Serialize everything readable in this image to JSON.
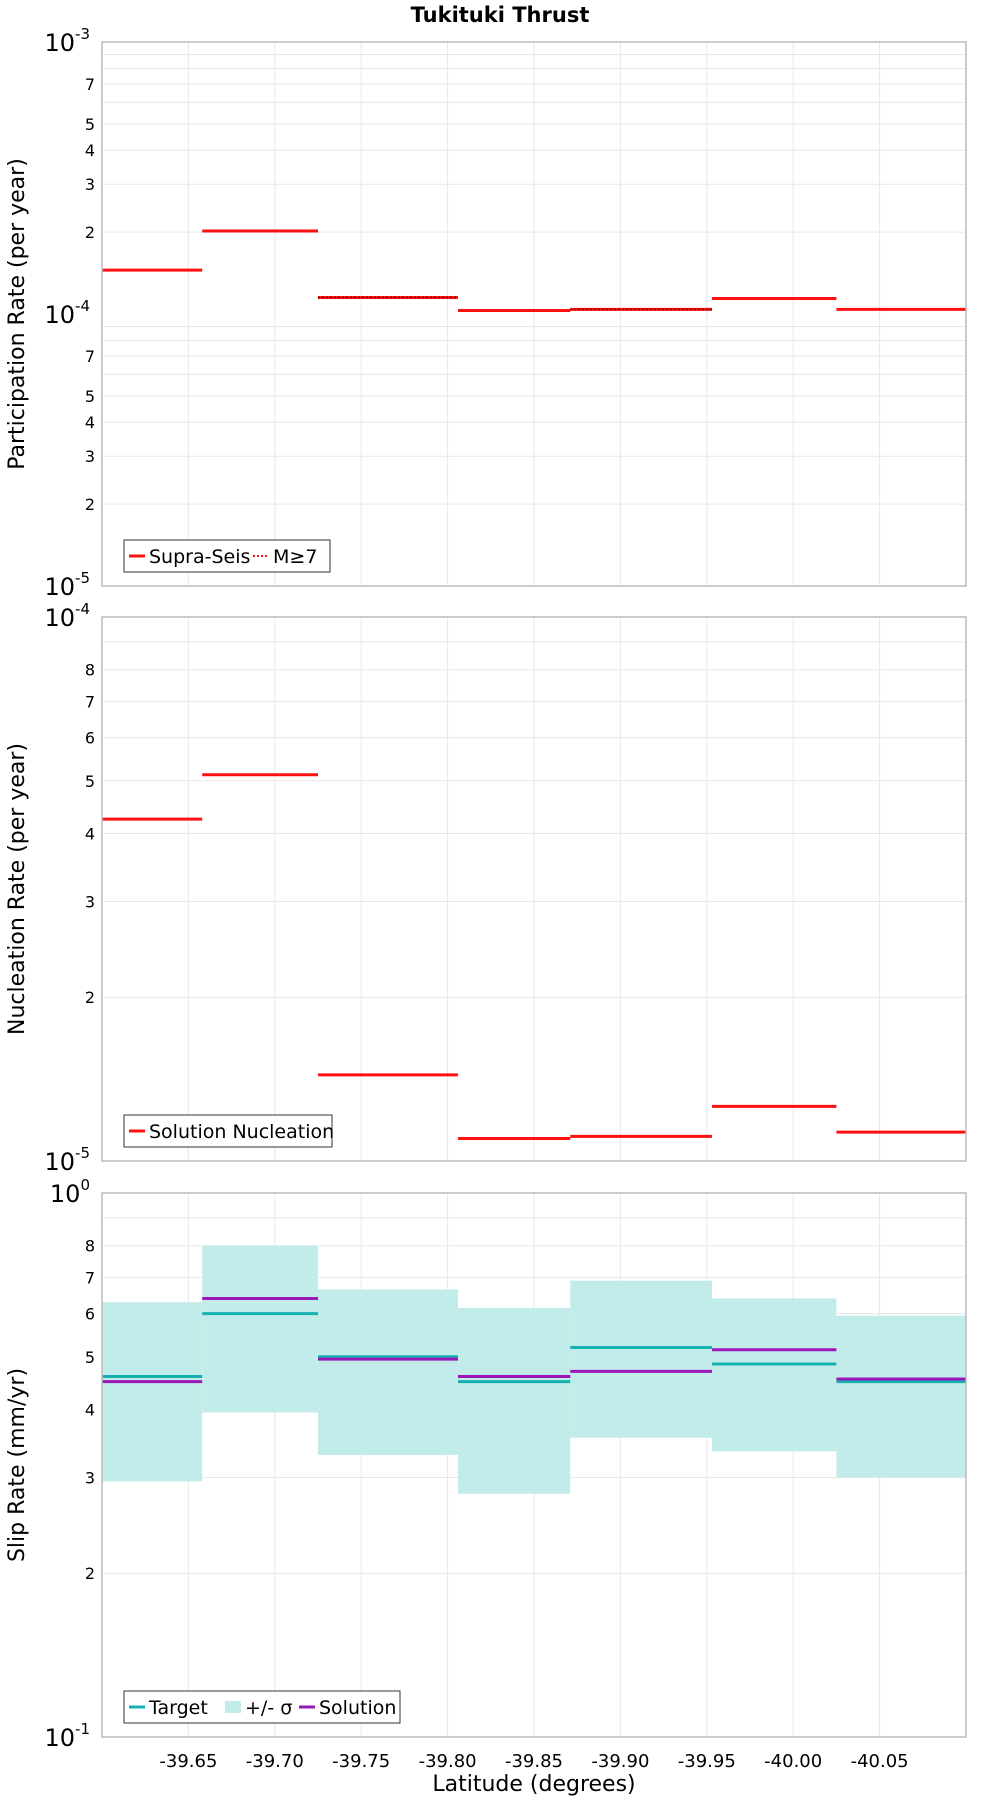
{
  "title": "Tukituki Thrust",
  "xlabel": "Latitude (degrees)",
  "xticks": [
    "-39.65",
    "-39.70",
    "-39.75",
    "-39.80",
    "-39.85",
    "-39.90",
    "-39.95",
    "-40.00",
    "-40.05"
  ],
  "colors": {
    "red": "#ff1010",
    "teal": "#16b0b0",
    "band": "#c2ecea",
    "purple": "#9a18b8",
    "grid": "#e7e7e7",
    "frame": "#bbbbbb"
  },
  "chart_data": [
    {
      "type": "line",
      "panel": "participation",
      "ylabel": "Participation Rate (per year)",
      "yscale": "log",
      "ylim": [
        1e-05,
        0.001
      ],
      "decade_labels": [
        {
          "base": "10",
          "exp": "-3"
        },
        {
          "base": "10",
          "exp": "-4"
        },
        {
          "base": "10",
          "exp": "-5"
        }
      ],
      "legend": {
        "position": "bottom-left",
        "entries": [
          "Supra-Seis",
          "M≥7"
        ]
      },
      "bins": [
        [
          -39.6,
          -39.658
        ],
        [
          -39.658,
          -39.725
        ],
        [
          -39.725,
          -39.806
        ],
        [
          -39.806,
          -39.871
        ],
        [
          -39.871,
          -39.953
        ],
        [
          -39.953,
          -40.025
        ],
        [
          -40.025,
          -40.1
        ]
      ],
      "series": [
        {
          "name": "Supra-Seis",
          "style": "solid",
          "values": [
            0.000145,
            0.000202,
            0.000115,
            0.000103,
            0.000104,
            0.000114,
            0.000104
          ]
        },
        {
          "name": "M≥7",
          "style": "dotted",
          "values": [
            null,
            null,
            0.000115,
            null,
            0.000104,
            null,
            null
          ]
        }
      ]
    },
    {
      "type": "line",
      "panel": "nucleation",
      "ylabel": "Nucleation Rate (per year)",
      "yscale": "log",
      "ylim": [
        1e-05,
        0.0001
      ],
      "decade_labels": [
        {
          "base": "10",
          "exp": "-4"
        },
        {
          "base": "10",
          "exp": "-5"
        }
      ],
      "legend": {
        "position": "bottom-left",
        "entries": [
          "Solution Nucleation"
        ]
      },
      "bins": [
        [
          -39.6,
          -39.658
        ],
        [
          -39.658,
          -39.725
        ],
        [
          -39.725,
          -39.806
        ],
        [
          -39.806,
          -39.871
        ],
        [
          -39.871,
          -39.953
        ],
        [
          -39.953,
          -40.025
        ],
        [
          -40.025,
          -40.1
        ]
      ],
      "series": [
        {
          "name": "Solution Nucleation",
          "style": "solid",
          "values": [
            4.25e-05,
            5.13e-05,
            1.44e-05,
            1.1e-05,
            1.11e-05,
            1.26e-05,
            1.13e-05
          ]
        }
      ]
    },
    {
      "type": "line",
      "panel": "slip",
      "ylabel": "Slip Rate (mm/yr)",
      "yscale": "log",
      "ylim": [
        0.1,
        1
      ],
      "decade_labels": [
        {
          "base": "10",
          "exp": "0"
        },
        {
          "base": "10",
          "exp": "-1"
        }
      ],
      "legend": {
        "position": "bottom-left",
        "entries": [
          "Target",
          "+/- σ",
          "Solution"
        ]
      },
      "bins": [
        [
          -39.6,
          -39.658
        ],
        [
          -39.658,
          -39.725
        ],
        [
          -39.725,
          -39.806
        ],
        [
          -39.806,
          -39.871
        ],
        [
          -39.871,
          -39.953
        ],
        [
          -39.953,
          -40.025
        ],
        [
          -40.025,
          -40.1
        ]
      ],
      "series": [
        {
          "name": "Target",
          "values": [
            0.46,
            0.6,
            0.5,
            0.45,
            0.52,
            0.485,
            0.45
          ]
        },
        {
          "name": "+/- σ",
          "lower": [
            0.295,
            0.395,
            0.33,
            0.28,
            0.355,
            0.335,
            0.3
          ],
          "upper": [
            0.63,
            0.8,
            0.665,
            0.615,
            0.69,
            0.64,
            0.595
          ]
        },
        {
          "name": "Solution",
          "values": [
            0.45,
            0.64,
            0.495,
            0.46,
            0.47,
            0.515,
            0.455
          ]
        }
      ]
    }
  ]
}
